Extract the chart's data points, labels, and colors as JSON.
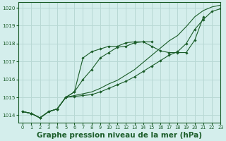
{
  "background_color": "#d4eeec",
  "grid_color": "#b8d8d4",
  "line_color": "#1a5c28",
  "title": "Graphe pression niveau de la mer (hPa)",
  "title_fontsize": 7.5,
  "xlim": [
    -0.5,
    23
  ],
  "ylim": [
    1013.6,
    1020.3
  ],
  "yticks": [
    1014,
    1015,
    1016,
    1017,
    1018,
    1019,
    1020
  ],
  "xticks": [
    0,
    1,
    2,
    3,
    4,
    5,
    6,
    7,
    8,
    9,
    10,
    11,
    12,
    13,
    14,
    15,
    16,
    17,
    18,
    19,
    20,
    21,
    22,
    23
  ],
  "series": [
    {
      "x": [
        0,
        1,
        2,
        3,
        4,
        5,
        6,
        7,
        8,
        9,
        10,
        11,
        12,
        13,
        14,
        15,
        16,
        17,
        18,
        19,
        20,
        21,
        22,
        23
      ],
      "y": [
        1014.2,
        1014.1,
        1013.85,
        1014.2,
        1014.35,
        1015.0,
        1015.05,
        1015.1,
        1015.15,
        1015.3,
        1015.5,
        1015.7,
        1015.9,
        1016.15,
        1016.45,
        1016.75,
        1017.05,
        1017.35,
        1017.55,
        1018.0,
        1018.8,
        1019.35,
        1019.8,
        1019.95
      ],
      "marker": true
    },
    {
      "x": [
        0,
        1,
        2,
        3,
        4,
        5,
        6,
        7,
        8,
        9,
        10,
        11,
        12,
        13,
        14,
        15,
        16,
        17,
        18,
        19,
        20,
        21,
        22,
        23
      ],
      "y": [
        1014.2,
        1014.1,
        1013.85,
        1014.2,
        1014.35,
        1015.0,
        1015.1,
        1015.2,
        1015.3,
        1015.5,
        1015.75,
        1015.95,
        1016.25,
        1016.55,
        1016.95,
        1017.35,
        1017.75,
        1018.15,
        1018.45,
        1018.95,
        1019.5,
        1019.85,
        1020.05,
        1020.15
      ],
      "marker": false
    },
    {
      "x": [
        0,
        1,
        2,
        3,
        4,
        5,
        6,
        7,
        8,
        9,
        10,
        11,
        12,
        13,
        14,
        15
      ],
      "y": [
        1014.2,
        1014.1,
        1013.85,
        1014.2,
        1014.35,
        1015.0,
        1015.3,
        1016.0,
        1016.55,
        1017.2,
        1017.5,
        1017.8,
        1017.85,
        1018.05,
        1018.1,
        1018.1
      ],
      "marker": true
    },
    {
      "x": [
        0,
        1,
        2,
        3,
        4,
        5,
        6,
        7,
        8,
        9,
        10,
        11,
        12,
        13,
        14,
        15,
        16,
        17,
        18,
        19,
        20,
        21
      ],
      "y": [
        1014.2,
        1014.1,
        1013.85,
        1014.2,
        1014.35,
        1015.0,
        1015.3,
        1017.2,
        1017.55,
        1017.7,
        1017.85,
        1017.85,
        1018.05,
        1018.1,
        1018.1,
        1017.85,
        1017.6,
        1017.5,
        1017.5,
        1017.5,
        1018.2,
        1019.5
      ],
      "marker": true
    }
  ]
}
